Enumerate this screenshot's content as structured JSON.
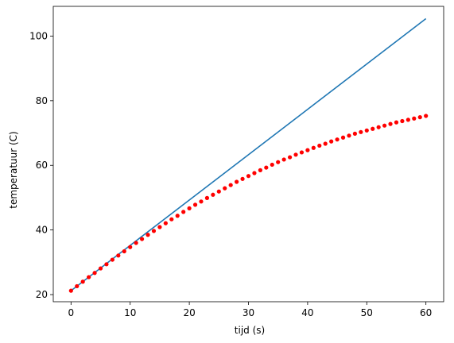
{
  "chart_data": {
    "type": "line",
    "xlabel": "tijd (s)",
    "ylabel": "temperatuur (C)",
    "xlim": [
      -3,
      63
    ],
    "ylim": [
      17.8,
      109.2
    ],
    "xticks": [
      0,
      10,
      20,
      30,
      40,
      50,
      60
    ],
    "yticks": [
      20,
      40,
      60,
      80,
      100
    ],
    "grid": false,
    "colors": {
      "line": "#1f77b4",
      "points": "#ff0000"
    },
    "series": [
      {
        "style": "line",
        "x": [
          0,
          60
        ],
        "y": [
          21.2,
          105.4
        ]
      },
      {
        "style": "points",
        "x": [
          0,
          1,
          2,
          3,
          4,
          5,
          6,
          7,
          8,
          9,
          10,
          11,
          12,
          13,
          14,
          15,
          16,
          17,
          18,
          19,
          20,
          21,
          22,
          23,
          24,
          25,
          26,
          27,
          28,
          29,
          30,
          31,
          32,
          33,
          34,
          35,
          36,
          37,
          38,
          39,
          40,
          41,
          42,
          43,
          44,
          45,
          46,
          47,
          48,
          49,
          50,
          51,
          52,
          53,
          54,
          55,
          56,
          57,
          58,
          59,
          60
        ],
        "y": [
          21.2,
          22.6,
          24.0,
          25.4,
          26.7,
          28.1,
          29.4,
          30.8,
          32.1,
          33.4,
          34.7,
          36.0,
          37.2,
          38.5,
          39.7,
          40.9,
          42.1,
          43.3,
          44.4,
          45.6,
          46.7,
          47.8,
          48.8,
          49.9,
          50.9,
          51.9,
          52.9,
          53.9,
          54.9,
          55.8,
          56.7,
          57.6,
          58.5,
          59.3,
          60.2,
          61.0,
          61.8,
          62.5,
          63.3,
          64.0,
          64.7,
          65.4,
          66.1,
          66.7,
          67.4,
          68.0,
          68.6,
          69.2,
          69.8,
          70.3,
          70.8,
          71.3,
          71.8,
          72.3,
          72.8,
          73.3,
          73.7,
          74.1,
          74.5,
          74.9,
          75.3
        ]
      }
    ]
  }
}
